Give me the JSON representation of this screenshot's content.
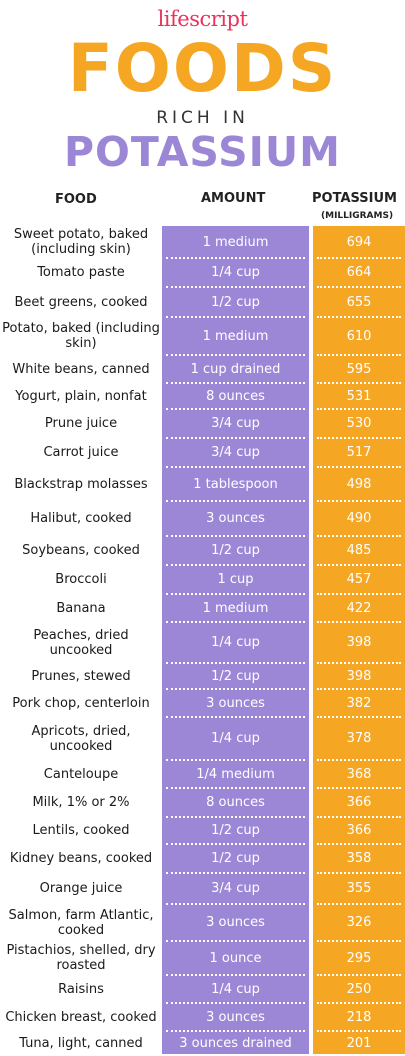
{
  "brand": "lifescript",
  "title_main": "FOODS",
  "title_sub": "RICH IN",
  "title_topic": "POTASSIUM",
  "headers": {
    "food": "FOOD",
    "amount": "AMOUNT",
    "potassium": "POTASSIUM",
    "unit": "(MILLIGRAMS)"
  },
  "colors": {
    "purple": "#9b87d6",
    "orange": "#f5a623",
    "brand_red": "#e8335a"
  },
  "rows": [
    {
      "food": "Sweet potato, baked (including skin)",
      "amount": "1 medium",
      "potassium": "694"
    },
    {
      "food": "Tomato paste",
      "amount": "1/4 cup",
      "potassium": "664"
    },
    {
      "food": "Beet greens, cooked",
      "amount": "1/2 cup",
      "potassium": "655"
    },
    {
      "food": "Potato, baked (including skin)",
      "amount": "1 medium",
      "potassium": "610"
    },
    {
      "food": "White beans, canned",
      "amount": "1 cup drained",
      "potassium": "595"
    },
    {
      "food": "Yogurt, plain, nonfat",
      "amount": "8 ounces",
      "potassium": "531"
    },
    {
      "food": "Prune juice",
      "amount": "3/4 cup",
      "potassium": "530"
    },
    {
      "food": "Carrot juice",
      "amount": "3/4 cup",
      "potassium": "517"
    },
    {
      "food": "Blackstrap molasses",
      "amount": "1 tablespoon",
      "potassium": "498"
    },
    {
      "food": "Halibut, cooked",
      "amount": "3 ounces",
      "potassium": "490"
    },
    {
      "food": "Soybeans, cooked",
      "amount": "1/2 cup",
      "potassium": "485"
    },
    {
      "food": "Broccoli",
      "amount": "1 cup",
      "potassium": "457"
    },
    {
      "food": "Banana",
      "amount": "1 medium",
      "potassium": "422"
    },
    {
      "food": "Peaches, dried uncooked",
      "amount": "1/4 cup",
      "potassium": "398"
    },
    {
      "food": "Prunes, stewed",
      "amount": "1/2 cup",
      "potassium": "398"
    },
    {
      "food": "Pork chop, centerloin",
      "amount": "3 ounces",
      "potassium": "382"
    },
    {
      "food": "Apricots, dried, uncooked",
      "amount": "1/4 cup",
      "potassium": "378"
    },
    {
      "food": "Canteloupe",
      "amount": "1/4 medium",
      "potassium": "368"
    },
    {
      "food": "Milk, 1% or 2%",
      "amount": "8 ounces",
      "potassium": "366"
    },
    {
      "food": "Lentils, cooked",
      "amount": "1/2 cup",
      "potassium": "366"
    },
    {
      "food": "Kidney beans, cooked",
      "amount": "1/2 cup",
      "potassium": "358"
    },
    {
      "food": "Orange juice",
      "amount": "3/4 cup",
      "potassium": "355"
    },
    {
      "food": "Salmon, farm Atlantic, cooked",
      "amount": "3 ounces",
      "potassium": "326"
    },
    {
      "food": "Pistachios, shelled, dry roasted",
      "amount": "1 ounce",
      "potassium": "295"
    },
    {
      "food": "Raisins",
      "amount": "1/4 cup",
      "potassium": "250"
    },
    {
      "food": "Chicken breast, cooked",
      "amount": "3 ounces",
      "potassium": "218"
    },
    {
      "food": "Tuna, light, canned",
      "amount": "3 ounces drained",
      "potassium": "201"
    }
  ]
}
